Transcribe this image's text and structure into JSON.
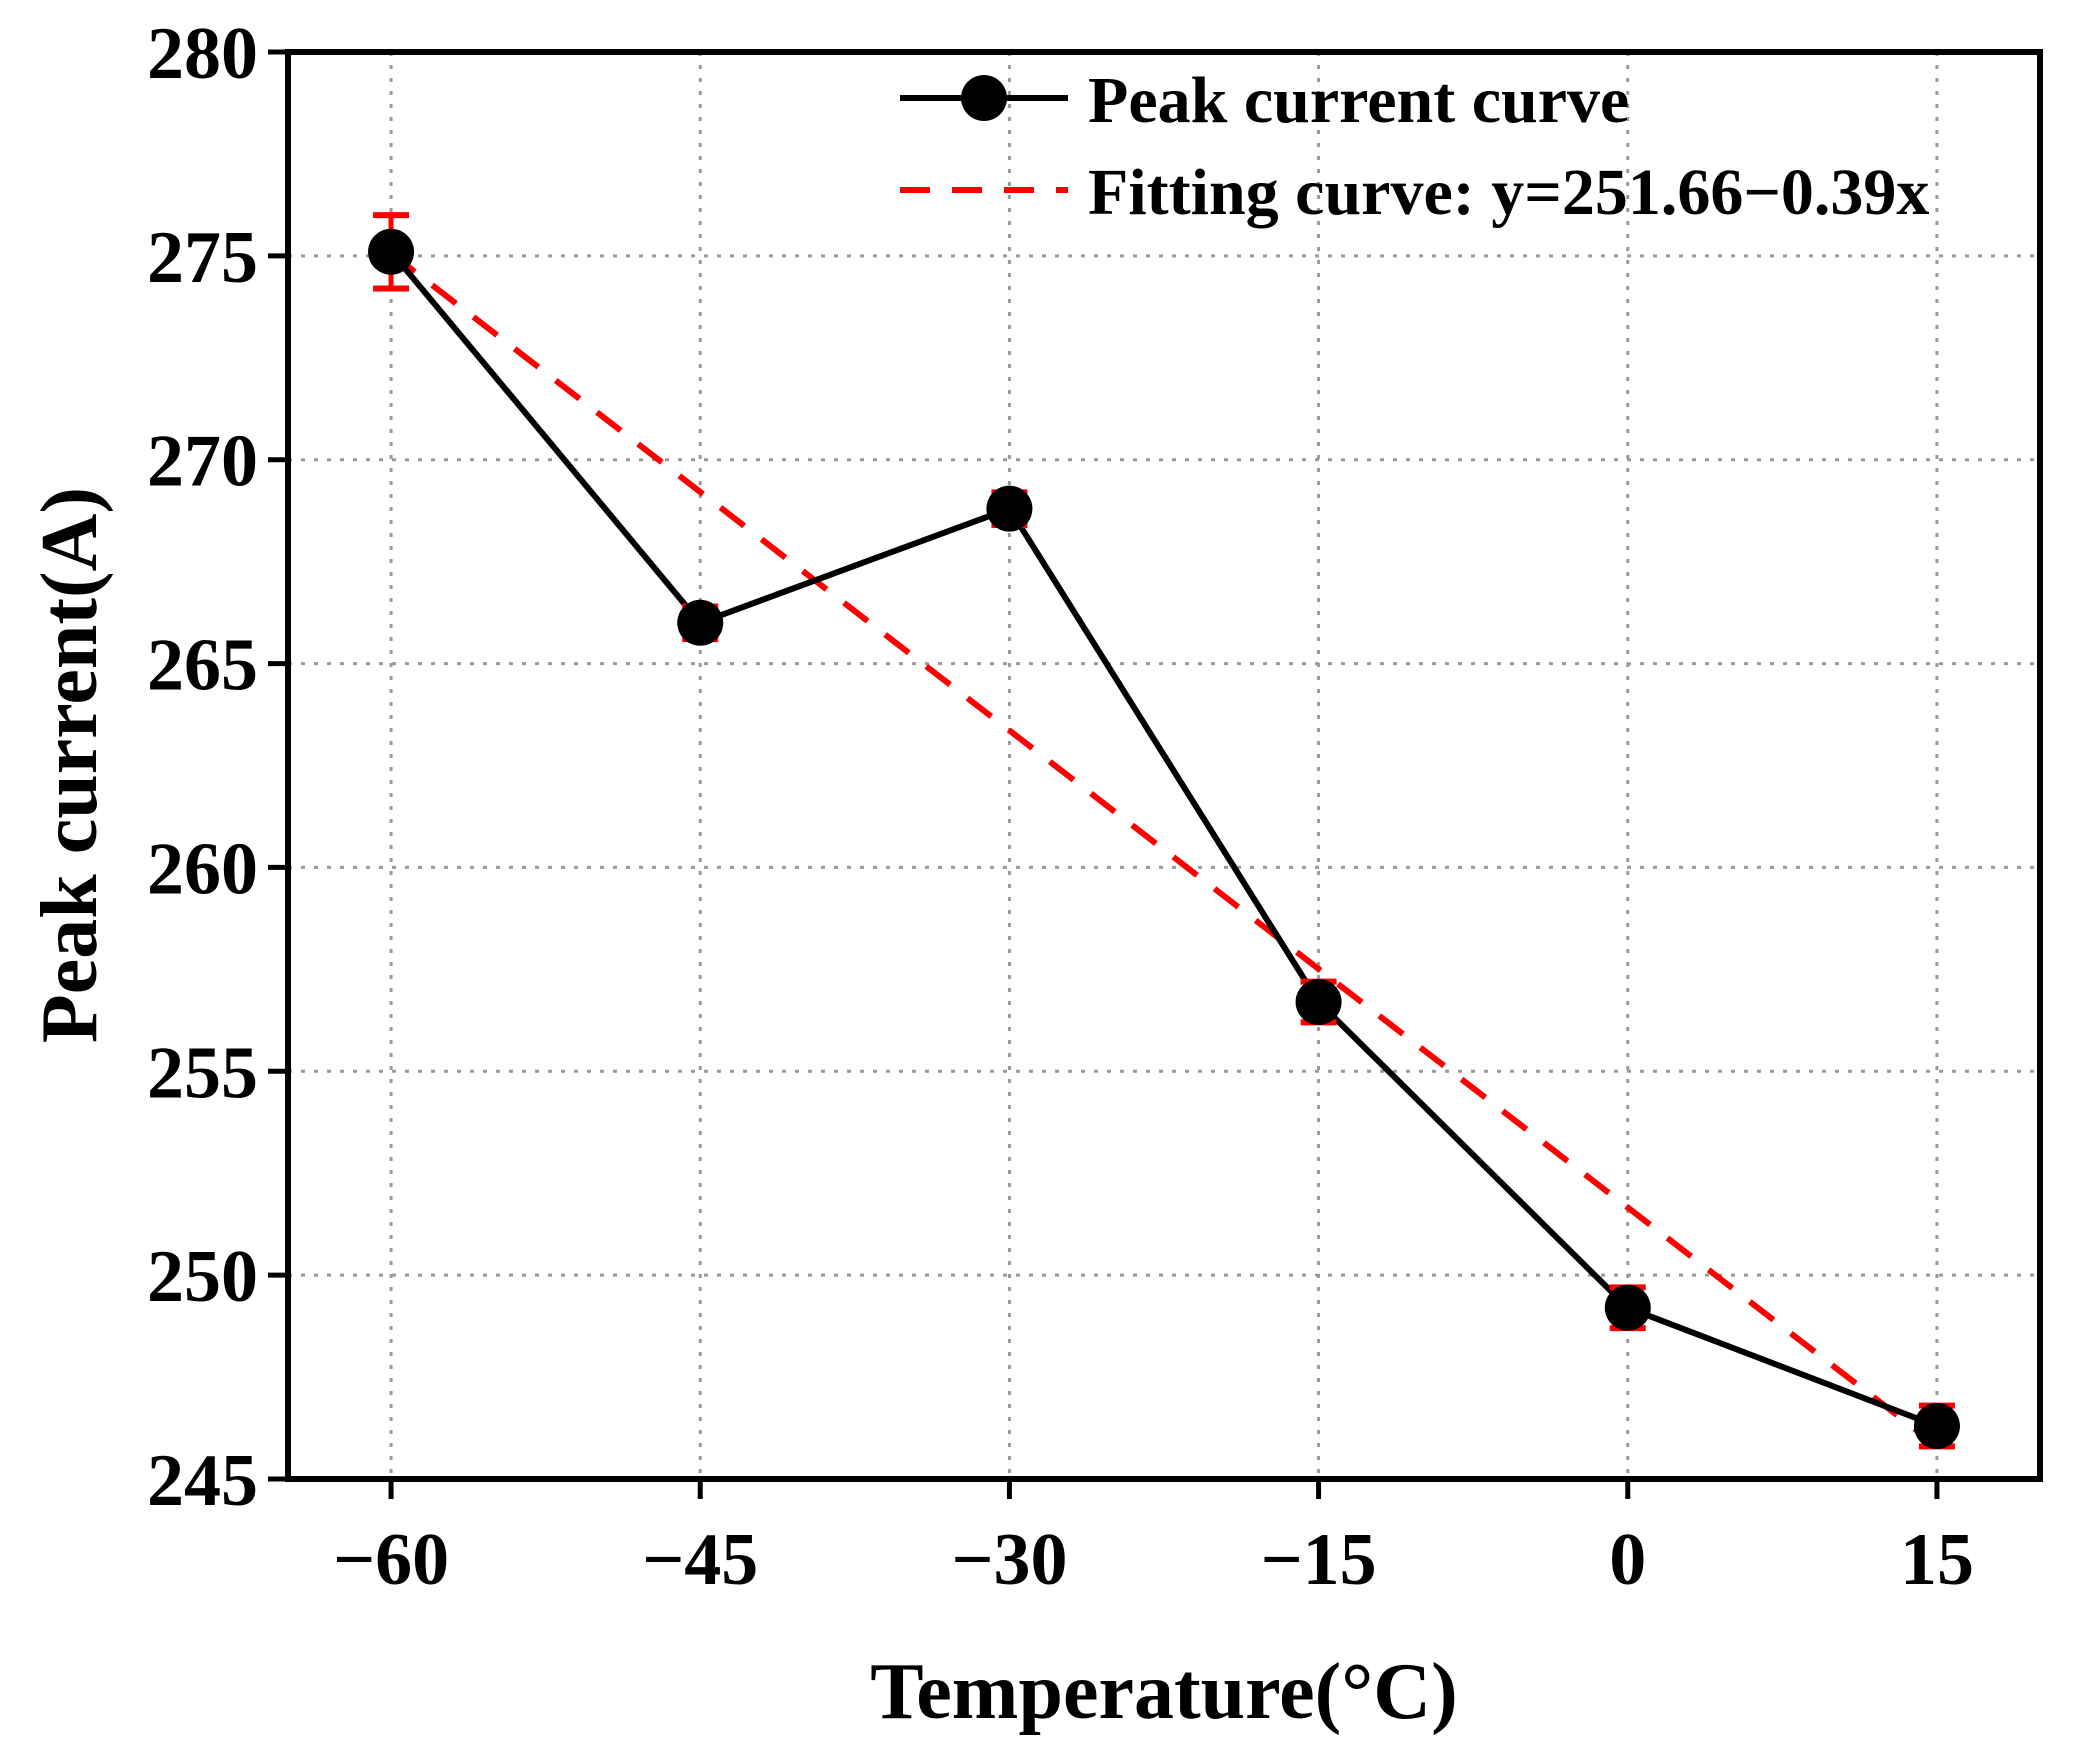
{
  "chart_data": {
    "type": "line",
    "title": "",
    "xlabel": "Temperature(°C)",
    "ylabel": "Peak current(A)",
    "x": [
      -60,
      -45,
      -30,
      -15,
      0,
      15
    ],
    "x_tick_labels": [
      "−60",
      "−45",
      "−30",
      "−15",
      "0",
      "15"
    ],
    "y_ticks": [
      245,
      250,
      255,
      260,
      265,
      270,
      275,
      280
    ],
    "y_tick_labels": [
      "245",
      "250",
      "255",
      "260",
      "265",
      "270",
      "275",
      "280"
    ],
    "xlim": [
      -65,
      20
    ],
    "ylim": [
      245,
      280
    ],
    "grid": true,
    "legend_position": "top-right",
    "series": [
      {
        "name": "Peak current curve",
        "style": "solid-line-with-circle-markers",
        "color": "#000000",
        "values": [
          275.1,
          266.0,
          268.8,
          256.7,
          249.2,
          246.3
        ],
        "error_bars": [
          0.9,
          0.4,
          0.4,
          0.5,
          0.5,
          0.5
        ],
        "error_bar_color": "#ff0000"
      },
      {
        "name": "Fitting curve: y=251.66−0.39x",
        "style": "dashed-line",
        "color": "#ff0000",
        "intercept": 251.66,
        "slope": -0.39
      }
    ]
  }
}
